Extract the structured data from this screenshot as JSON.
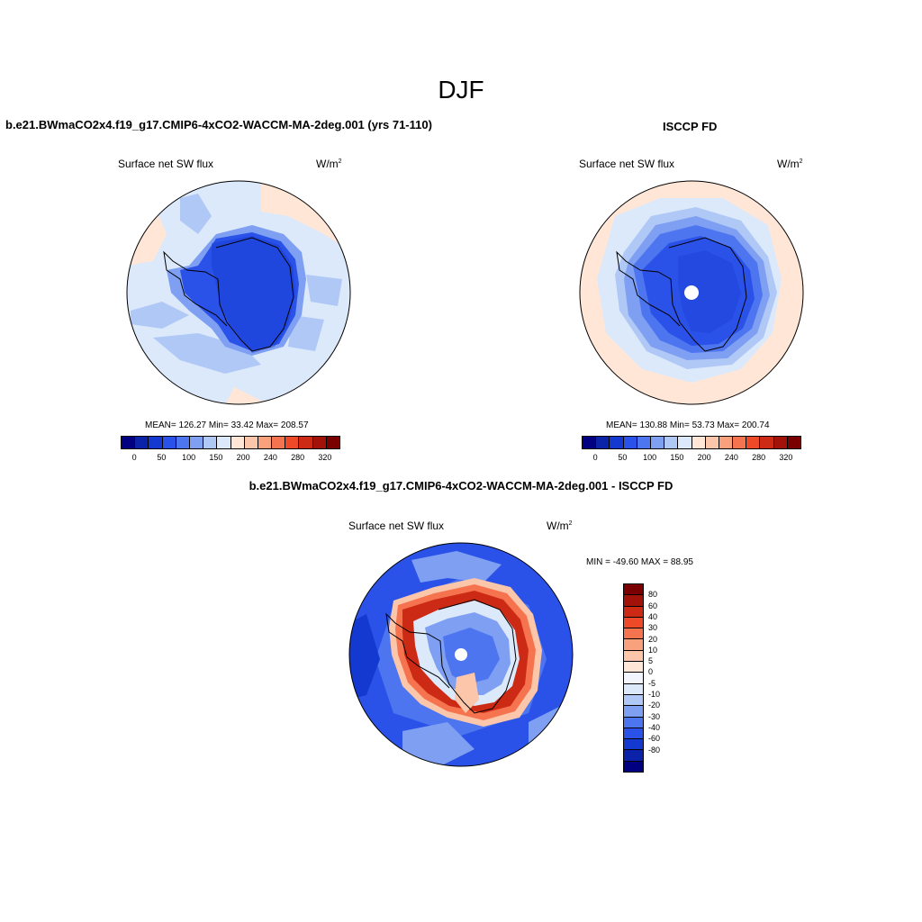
{
  "figure": {
    "title": "DJF"
  },
  "panels": {
    "model": {
      "title": "b.e21.BWmaCO2x4.f19_g17.CMIP6-4xCO2-WACCM-MA-2deg.001 (yrs 71-110)",
      "variable": "Surface net SW flux",
      "units": "W/m",
      "units_exp": "2",
      "stats": "MEAN= 126.27  Min=  33.42  Max= 208.57"
    },
    "obs": {
      "title": "ISCCP FD",
      "variable": "Surface net SW flux",
      "units": "W/m",
      "units_exp": "2",
      "stats": "MEAN= 130.88  Min=  53.73  Max= 200.74"
    },
    "diff": {
      "title": "b.e21.BWmaCO2x4.f19_g17.CMIP6-4xCO2-WACCM-MA-2deg.001 - ISCCP FD",
      "variable": "Surface net SW flux",
      "units": "W/m",
      "units_exp": "2",
      "stats": "MIN = -49.60 MAX =  88.95"
    }
  },
  "colorbar_abs": {
    "colors": [
      "#000080",
      "#0b23a8",
      "#1339d0",
      "#2b52e8",
      "#4d75ef",
      "#7e9ff2",
      "#b0c8f6",
      "#dce9fb",
      "#ffe6d6",
      "#fcc6aa",
      "#f9a07c",
      "#f5744f",
      "#ee4a2a",
      "#cc2a14",
      "#a31208",
      "#7a0000"
    ],
    "labels": [
      "0",
      "50",
      "100",
      "150",
      "200",
      "240",
      "280",
      "320"
    ]
  },
  "colorbar_diff": {
    "colors": [
      "#7a0000",
      "#a31208",
      "#cc2a14",
      "#ee4a2a",
      "#f5744f",
      "#f9a07c",
      "#fcc6aa",
      "#ffe6d6",
      "#f3f5fc",
      "#dce9fb",
      "#b0c8f6",
      "#7e9ff2",
      "#4d75ef",
      "#2b52e8",
      "#1339d0",
      "#0b23a8",
      "#000080"
    ],
    "labels": [
      "80",
      "60",
      "40",
      "30",
      "20",
      "10",
      "5",
      "0",
      "-5",
      "-10",
      "-20",
      "-30",
      "-40",
      "-60",
      "-80"
    ]
  }
}
